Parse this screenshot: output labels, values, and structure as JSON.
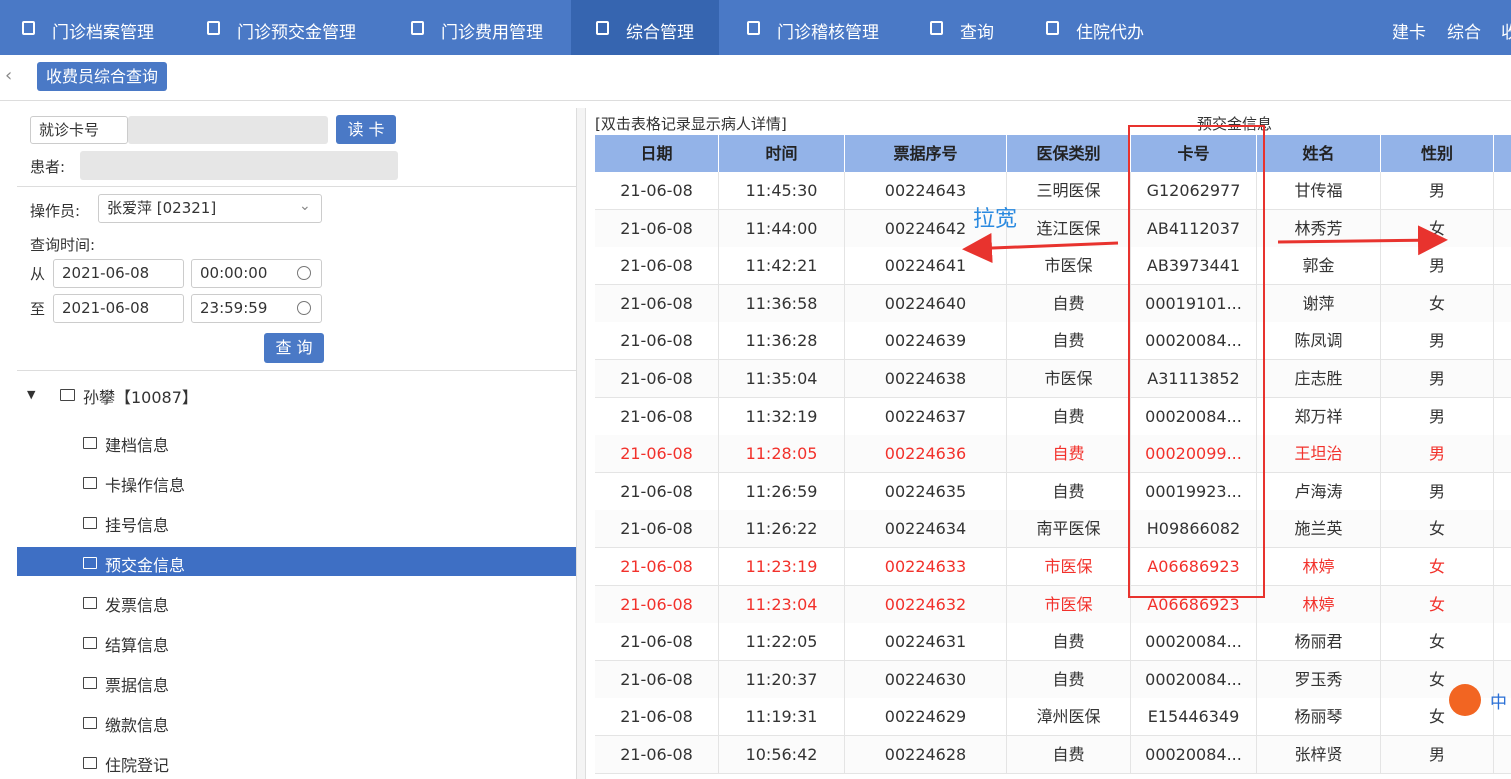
{
  "nav": {
    "items": [
      "门诊档案管理",
      "门诊预交金管理",
      "门诊费用管理",
      "综合管理",
      "门诊稽核管理",
      "查询",
      "住院代办"
    ],
    "active": 3,
    "right": [
      "建卡",
      "综合",
      "收"
    ]
  },
  "tab": "收费员综合查询",
  "form": {
    "card_label": "就诊卡号",
    "read_button": "读 卡",
    "patient_label": "患者:",
    "operator_label": "操作员:",
    "operator_value": "张爱萍 [02321]",
    "time_label": "查询时间:",
    "from_label": "从",
    "from_date": "2021-06-08",
    "from_time": "00:00:00",
    "to_label": "至",
    "to_date": "2021-06-08",
    "to_time": "23:59:59",
    "query_button": "查 询"
  },
  "tree": {
    "root": "孙攀【10087】",
    "items": [
      "建档信息",
      "卡操作信息",
      "挂号信息",
      "预交金信息",
      "发票信息",
      "结算信息",
      "票据信息",
      "缴款信息",
      "住院登记"
    ],
    "selected": 3
  },
  "table": {
    "hint": "[双击表格记录显示病人详情]",
    "title": "预交金信息",
    "headers": [
      "日期",
      "时间",
      "票据序号",
      "医保类别",
      "卡号",
      "姓名",
      "性别"
    ],
    "rows": [
      [
        "21-06-08",
        "11:45:30",
        "00224643",
        "三明医保",
        "G12062977",
        "甘传福",
        "男"
      ],
      [
        "21-06-08",
        "11:44:00",
        "00224642",
        "连江医保",
        "AB4112037",
        "林秀芳",
        "女"
      ],
      [
        "21-06-08",
        "11:42:21",
        "00224641",
        "市医保",
        "AB3973441",
        "郭金",
        "男"
      ],
      [
        "21-06-08",
        "11:36:58",
        "00224640",
        "自费",
        "00019101...",
        "谢萍",
        "女"
      ],
      [
        "21-06-08",
        "11:36:28",
        "00224639",
        "自费",
        "00020084...",
        "陈凤调",
        "男"
      ],
      [
        "21-06-08",
        "11:35:04",
        "00224638",
        "市医保",
        "A31113852",
        "庄志胜",
        "男"
      ],
      [
        "21-06-08",
        "11:32:19",
        "00224637",
        "自费",
        "00020084...",
        "郑万祥",
        "男"
      ],
      [
        "21-06-08",
        "11:28:05",
        "00224636",
        "自费",
        "00020099...",
        "王坦治",
        "男"
      ],
      [
        "21-06-08",
        "11:26:59",
        "00224635",
        "自费",
        "00019923...",
        "卢海涛",
        "男"
      ],
      [
        "21-06-08",
        "11:26:22",
        "00224634",
        "南平医保",
        "H09866082",
        "施兰英",
        "女"
      ],
      [
        "21-06-08",
        "11:23:19",
        "00224633",
        "市医保",
        "A06686923",
        "林婷",
        "女"
      ],
      [
        "21-06-08",
        "11:23:04",
        "00224632",
        "市医保",
        "A06686923",
        "林婷",
        "女"
      ],
      [
        "21-06-08",
        "11:22:05",
        "00224631",
        "自费",
        "00020084...",
        "杨丽君",
        "女"
      ],
      [
        "21-06-08",
        "11:20:37",
        "00224630",
        "自费",
        "00020084...",
        "罗玉秀",
        "女"
      ],
      [
        "21-06-08",
        "11:19:31",
        "00224629",
        "漳州医保",
        "E15446349",
        "杨丽琴",
        "女"
      ],
      [
        "21-06-08",
        "10:56:42",
        "00224628",
        "自费",
        "00020084...",
        "张梓贤",
        "男"
      ]
    ],
    "red_rows": [
      7,
      10,
      11
    ]
  },
  "annotation": "拉宽",
  "ime": "中"
}
